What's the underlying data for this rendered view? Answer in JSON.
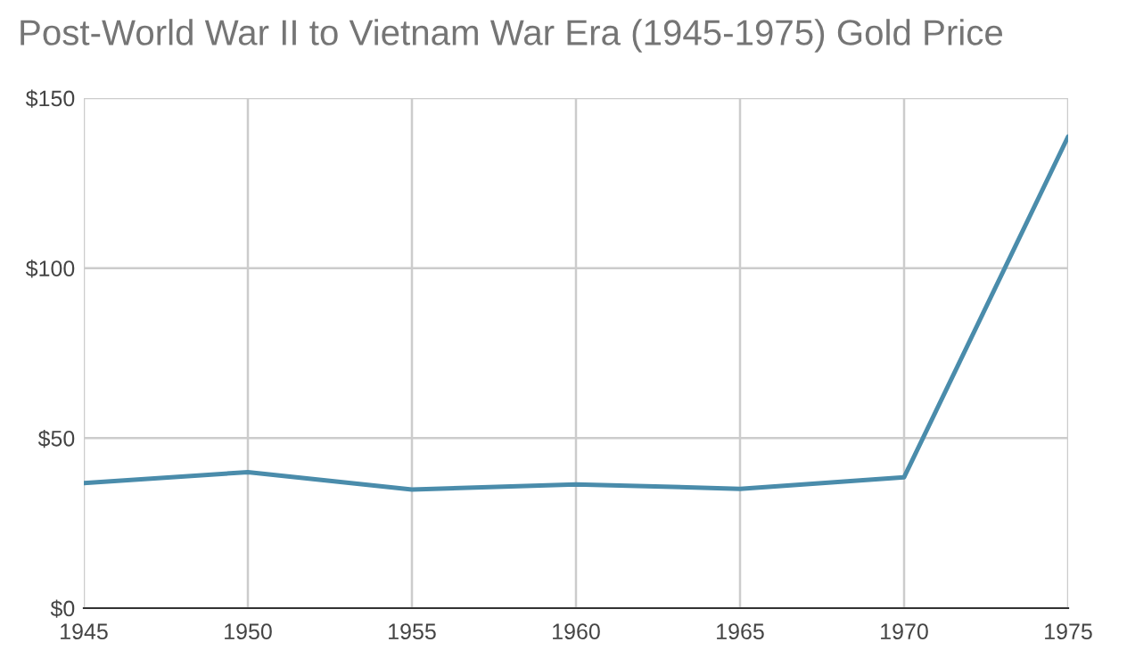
{
  "chart_data": {
    "type": "line",
    "title": "Post-World War II to Vietnam War Era (1945-1975) Gold Price",
    "x": [
      1945,
      1950,
      1955,
      1960,
      1965,
      1970,
      1975
    ],
    "series": [
      {
        "color": "#4a8cab",
        "values": [
          36.8,
          40.0,
          34.9,
          36.4,
          35.1,
          38.5,
          138.7
        ]
      }
    ],
    "xlim": [
      1945,
      1975
    ],
    "xticks": [
      1945,
      1950,
      1955,
      1960,
      1965,
      1970,
      1975
    ],
    "ylim": [
      0,
      150
    ],
    "yticks": [
      {
        "value": 0,
        "label": "$0"
      },
      {
        "value": 50,
        "label": "$50"
      },
      {
        "value": 100,
        "label": "$100"
      },
      {
        "value": 150,
        "label": "$150"
      }
    ],
    "grid": true
  }
}
